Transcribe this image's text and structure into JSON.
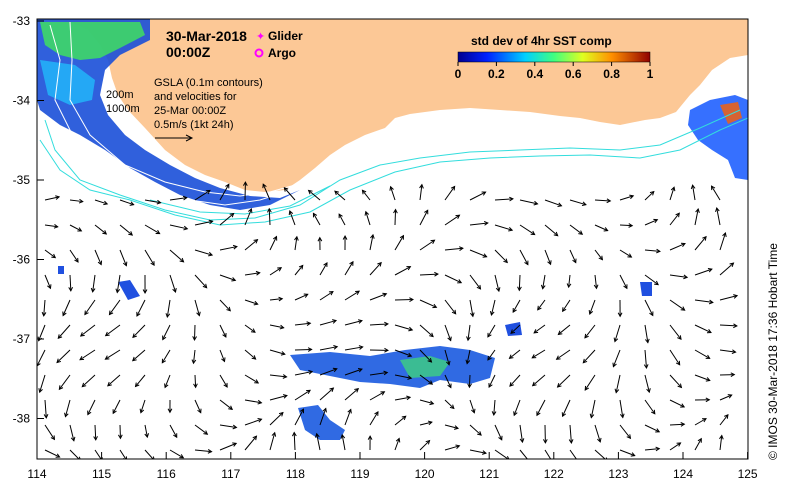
{
  "map": {
    "title_date": "30-Mar-2018",
    "title_time": "00:00Z",
    "x_ticks": [
      "114",
      "115",
      "116",
      "117",
      "118",
      "119",
      "120",
      "121",
      "122",
      "123",
      "124",
      "125"
    ],
    "y_ticks": [
      "-33",
      "-34",
      "-35",
      "-36",
      "-37",
      "-38"
    ],
    "depth_labels": [
      "200m",
      "1000m"
    ],
    "gsla_note": [
      "GSLA (0.1m contours)",
      "and velocities for",
      "25-Mar 00:00Z",
      "0.5m/s (1kt 24h)"
    ],
    "legend": {
      "glider_label": "Glider",
      "argo_label": "Argo",
      "glider_color": "#ff00ff",
      "argo_color": "#ff00ff"
    },
    "colorbar": {
      "title": "std dev of 4hr SST comp",
      "ticks": [
        "0",
        "0.2",
        "0.4",
        "0.6",
        "0.8",
        "1"
      ]
    },
    "credit": "© IMOS 30-Mar-2018 17:36 Hobart Time",
    "colors": {
      "land": "#fcc896",
      "contour": "#33dddd",
      "depth_contour": "#ffffff",
      "arrow": "#000000"
    }
  }
}
